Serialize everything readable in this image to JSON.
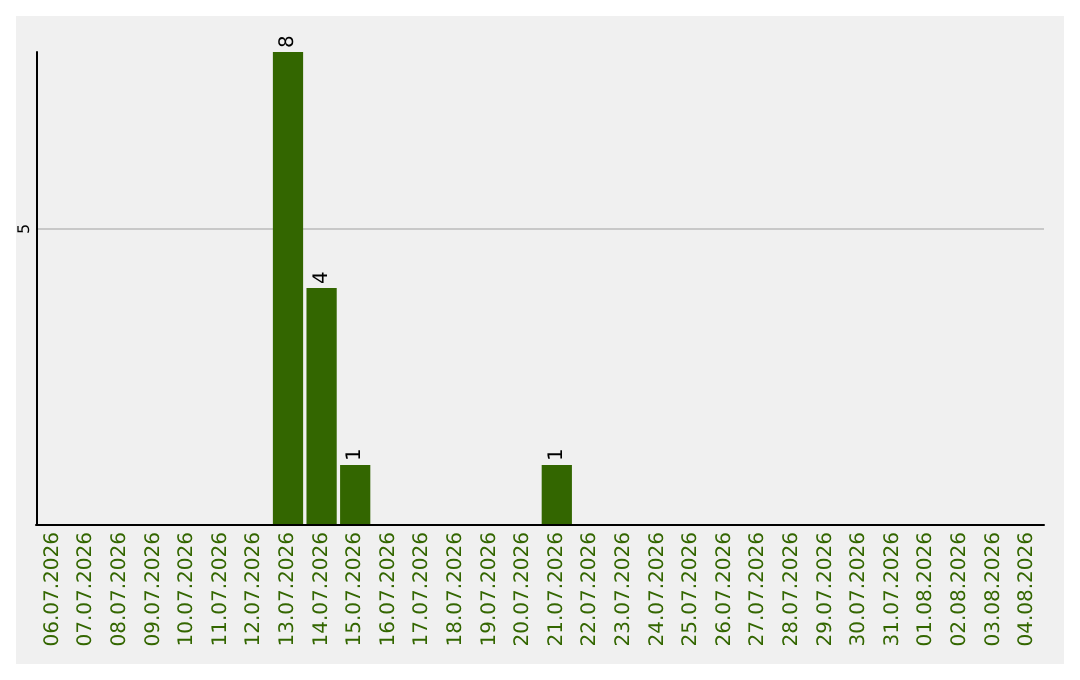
{
  "chart_data": {
    "type": "bar",
    "categories": [
      "06.07.2026",
      "07.07.2026",
      "08.07.2026",
      "09.07.2026",
      "10.07.2026",
      "11.07.2026",
      "12.07.2026",
      "13.07.2026",
      "14.07.2026",
      "15.07.2026",
      "16.07.2026",
      "17.07.2026",
      "18.07.2026",
      "19.07.2026",
      "20.07.2026",
      "21.07.2026",
      "22.07.2026",
      "23.07.2026",
      "24.07.2026",
      "25.07.2026",
      "26.07.2026",
      "27.07.2026",
      "28.07.2026",
      "29.07.2026",
      "30.07.2026",
      "31.07.2026",
      "01.08.2026",
      "02.08.2026",
      "03.08.2026",
      "04.08.2026"
    ],
    "values": [
      0,
      0,
      0,
      0,
      0,
      0,
      0,
      8,
      4,
      1,
      0,
      0,
      0,
      0,
      0,
      1,
      0,
      0,
      0,
      0,
      0,
      0,
      0,
      0,
      0,
      0,
      0,
      0,
      0,
      0
    ],
    "value_labels": [
      null,
      null,
      null,
      null,
      null,
      null,
      null,
      "8",
      "4",
      "1",
      null,
      null,
      null,
      null,
      null,
      "1",
      null,
      null,
      null,
      null,
      null,
      null,
      null,
      null,
      null,
      null,
      null,
      null,
      null,
      null
    ],
    "color": "#336600",
    "ylim": [
      0,
      8
    ],
    "yticks": [
      5
    ],
    "grid": "y"
  }
}
